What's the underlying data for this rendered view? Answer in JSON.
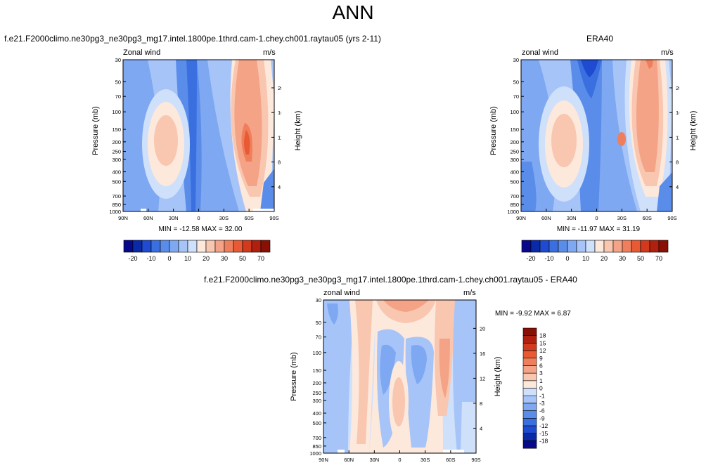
{
  "page": {
    "title": "ANN"
  },
  "panels": [
    {
      "id": "model",
      "title": "f.e21.F2000climo.ne30pg3_ne30pg3_mg17.intel.1800pe.1thrd.cam-1.chey.ch001.raytau05 (yrs 2-11)",
      "left_label": "Zonal wind",
      "units": "m/s",
      "ylabel": "Pressure (mb)",
      "ylabel_right": "Height (km)",
      "stats": "MIN = -12.58   MAX =  32.00"
    },
    {
      "id": "obs",
      "title": "ERA40",
      "left_label": "zonal wind",
      "units": "m/s",
      "ylabel": "Pressure (mb)",
      "ylabel_right": "Height (km)",
      "stats": "MIN = -11.97   MAX =  31.19"
    },
    {
      "id": "diff",
      "title": "f.e21.F2000climo.ne30pg3_ne30pg3_mg17.intel.1800pe.1thrd.cam-1.chey.ch001.raytau05 - ERA40",
      "left_label": "zonal wind",
      "units": "m/s",
      "ylabel": "Pressure (mb)",
      "ylabel_right": "Height (km)",
      "stats": "MIN =  -9.92   MAX =   6.87"
    }
  ],
  "chart_data": {
    "type": "heatmap",
    "x_ticks": [
      "90N",
      "60N",
      "30N",
      "0",
      "30S",
      "60S",
      "90S"
    ],
    "y_ticks": [
      "30",
      "50",
      "70",
      "100",
      "150",
      "200",
      "250",
      "300",
      "400",
      "500",
      "700",
      "850",
      "1000"
    ],
    "y_right_ticks": [
      "4",
      "8",
      "12",
      "16",
      "20"
    ],
    "colorbar_main": {
      "labels": [
        "-20",
        "-10",
        "0",
        "10",
        "20",
        "30",
        "50",
        "70"
      ],
      "colors": [
        "#08088a",
        "#0a2aa8",
        "#1f4bd0",
        "#3a6fe0",
        "#5a8cea",
        "#7ea8f2",
        "#a6c4f8",
        "#cfe0fb",
        "#fde8dc",
        "#f9c6b0",
        "#f4a386",
        "#ef7f5c",
        "#e85a34",
        "#d13a1c",
        "#b0200e",
        "#8a1005"
      ]
    },
    "colorbar_diff": {
      "labels": [
        "18",
        "15",
        "12",
        "9",
        "6",
        "3",
        "1",
        "0",
        "-1",
        "-3",
        "-6",
        "-9",
        "-12",
        "-15",
        "-18"
      ],
      "colors": [
        "#8a1005",
        "#b0200e",
        "#d13a1c",
        "#e85a34",
        "#ef7f5c",
        "#f4a386",
        "#f9c6b0",
        "#fde8dc",
        "#cfe0fb",
        "#a6c4f8",
        "#7ea8f2",
        "#5a8cea",
        "#3a6fe0",
        "#1f4bd0",
        "#0a2aa8",
        "#08088a"
      ]
    }
  }
}
